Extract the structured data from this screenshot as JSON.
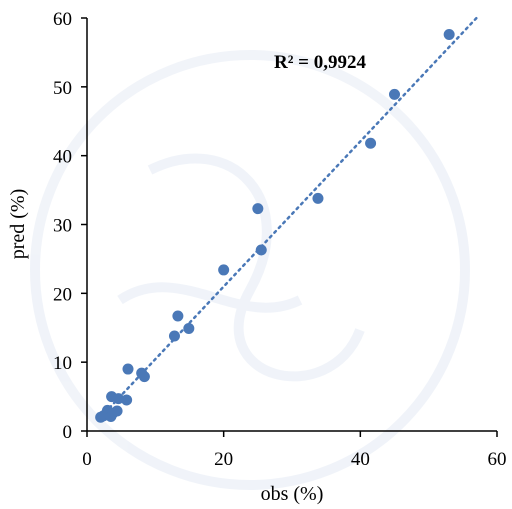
{
  "chart_data": {
    "type": "scatter",
    "title": "",
    "xlabel": "obs (%)",
    "ylabel": "pred (%)",
    "xlim": [
      0,
      60
    ],
    "ylim": [
      0,
      60
    ],
    "xticks": [
      0,
      20,
      40,
      60
    ],
    "yticks": [
      0,
      10,
      20,
      30,
      40,
      50,
      60
    ],
    "x_tick_labels": [
      "0",
      "20",
      "40",
      "60"
    ],
    "y_tick_labels": [
      "0",
      "10",
      "20",
      "30",
      "40",
      "50",
      "60"
    ],
    "grid": false,
    "legend": "none",
    "annotation": "R² = 0,9924",
    "trendline": {
      "type": "linear",
      "x_range": [
        2,
        57
      ],
      "y_range": [
        2,
        60
      ],
      "style": "dotted"
    },
    "series": [
      {
        "marker_color": "#4a78b7",
        "points": [
          {
            "x": 2.0,
            "y": 2.0
          },
          {
            "x": 2.4,
            "y": 2.2
          },
          {
            "x": 2.8,
            "y": 2.5
          },
          {
            "x": 3.0,
            "y": 3.0
          },
          {
            "x": 3.3,
            "y": 2.3
          },
          {
            "x": 3.5,
            "y": 2.1
          },
          {
            "x": 3.8,
            "y": 2.6
          },
          {
            "x": 3.6,
            "y": 5.0
          },
          {
            "x": 4.4,
            "y": 2.9
          },
          {
            "x": 4.6,
            "y": 4.7
          },
          {
            "x": 5.8,
            "y": 4.5
          },
          {
            "x": 6.0,
            "y": 9.0
          },
          {
            "x": 8.0,
            "y": 8.4
          },
          {
            "x": 8.4,
            "y": 7.9
          },
          {
            "x": 12.8,
            "y": 13.8
          },
          {
            "x": 13.3,
            "y": 16.7
          },
          {
            "x": 14.9,
            "y": 14.9
          },
          {
            "x": 20.0,
            "y": 23.4
          },
          {
            "x": 25.0,
            "y": 32.3
          },
          {
            "x": 25.5,
            "y": 26.3
          },
          {
            "x": 33.8,
            "y": 33.8
          },
          {
            "x": 41.5,
            "y": 41.8
          },
          {
            "x": 45.0,
            "y": 48.9
          },
          {
            "x": 53.0,
            "y": 57.6
          }
        ]
      }
    ]
  }
}
